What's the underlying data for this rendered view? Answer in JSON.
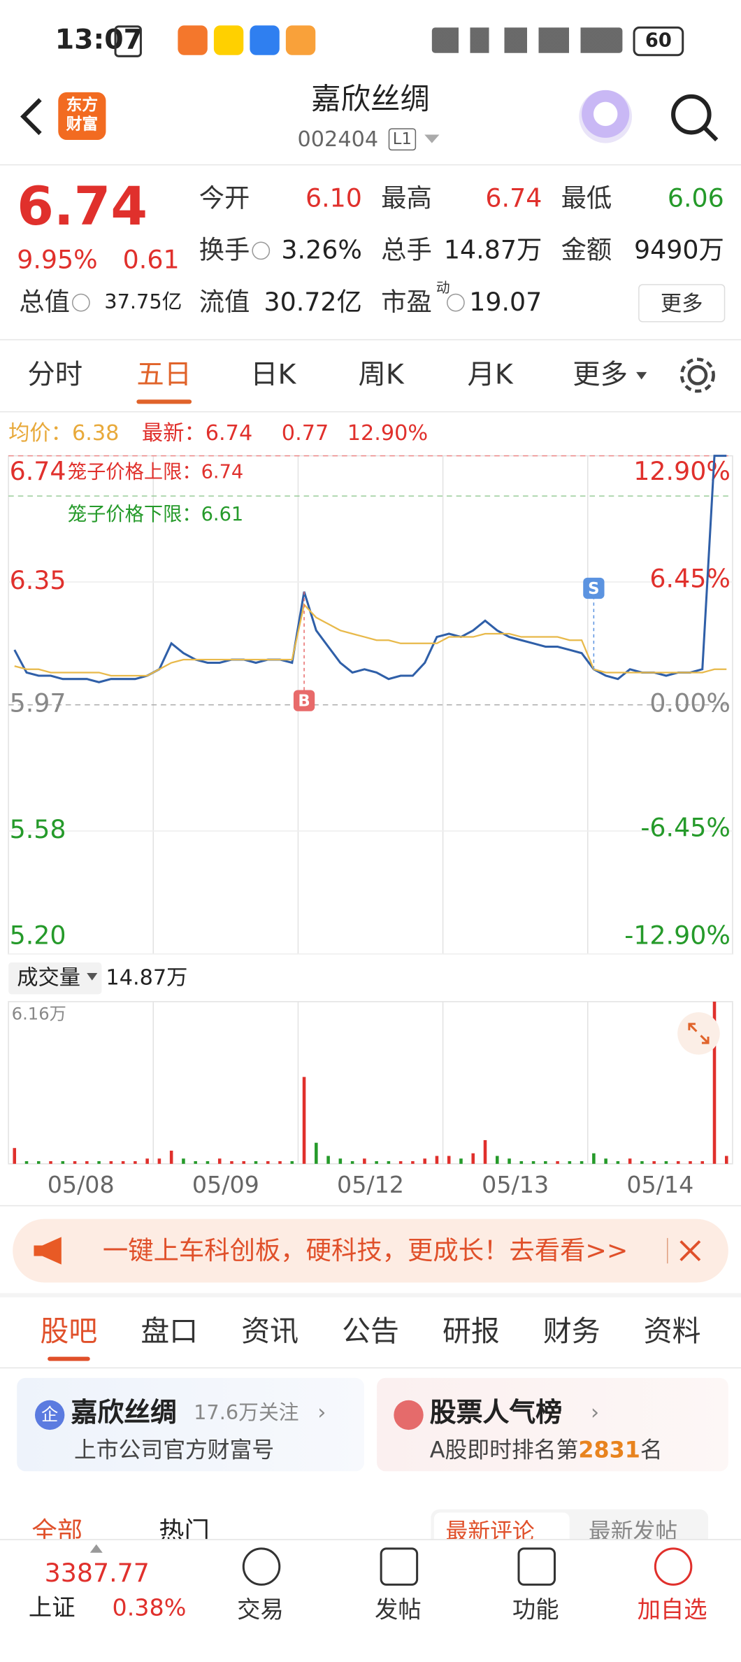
{
  "status_bar": {
    "time": "13:07",
    "battery": "60"
  },
  "header": {
    "logo": [
      "东方",
      "财富"
    ],
    "title": "嘉欣丝绸",
    "code": "002404",
    "level": "L1"
  },
  "quote": {
    "price": "6.74",
    "change_pct": "9.95%",
    "change": "0.61",
    "fields": [
      {
        "label": "今开",
        "value": "6.10"
      },
      {
        "label": "最高",
        "value": "6.74"
      },
      {
        "label": "最低",
        "value": "6.06"
      },
      {
        "label": "换手",
        "value": "3.26%"
      },
      {
        "label": "总手",
        "value": "14.87万"
      },
      {
        "label": "金额",
        "value": "9490万"
      },
      {
        "label": "总值",
        "value": "37.75亿"
      },
      {
        "label": "流值",
        "value": "30.72亿"
      },
      {
        "label": "市盈",
        "sup": "动",
        "value": "19.07"
      }
    ],
    "more": "更多"
  },
  "tabs": [
    "分时",
    "五日",
    "日K",
    "周K",
    "月K",
    "更多"
  ],
  "chart_data": {
    "type": "line",
    "avg_label": "均价：6.38",
    "latest_label": "最新：6.74",
    "change": "0.77",
    "change_pct": "12.90%",
    "cage_upper": "笼子价格上限：6.74",
    "cage_lower": "笼子价格下限：6.61",
    "buy_marker": "B",
    "sell_marker": "S",
    "ylim": [
      5.2,
      6.74
    ],
    "yticks": [
      6.74,
      6.35,
      5.97,
      5.58,
      {
        "value": 5.2,
        "label": "5.20"
      }
    ],
    "y2lim": [
      -12.9,
      12.9
    ],
    "y2ticks": [
      {
        "value": 12.9,
        "label": "12.90%"
      },
      {
        "value": 6.45,
        "label": "6.45%"
      },
      {
        "value": 0,
        "label": "0.00%"
      },
      {
        "value": -6.45,
        "label": "-6.45%"
      },
      {
        "value": -12.9,
        "label": "-12.90%"
      }
    ],
    "series": [
      {
        "name": "price",
        "color": "#2f5fa8"
      },
      {
        "name": "avg",
        "color": "#e8b94a"
      }
    ],
    "days": [
      {
        "date": "05/08",
        "price": [
          6.14,
          6.07,
          6.06,
          6.06,
          6.05,
          6.05,
          6.05,
          6.04,
          6.05,
          6.05,
          6.05,
          6.06
        ],
        "avg": [
          6.09,
          6.08,
          6.08,
          6.07,
          6.07,
          6.07,
          6.07,
          6.07,
          6.06,
          6.06,
          6.06,
          6.06
        ],
        "volume": [
          0.6,
          0.1,
          0.1,
          0.1,
          0.1,
          0.1,
          0.1,
          0.1,
          0.1,
          0.1,
          0.1,
          0.2
        ]
      },
      {
        "date": "05/09",
        "price": [
          6.08,
          6.16,
          6.13,
          6.11,
          6.1,
          6.1,
          6.11,
          6.11,
          6.1,
          6.11,
          6.11,
          6.1
        ],
        "avg": [
          6.08,
          6.1,
          6.11,
          6.11,
          6.11,
          6.11,
          6.11,
          6.11,
          6.11,
          6.11,
          6.11,
          6.11
        ],
        "volume": [
          0.2,
          0.5,
          0.2,
          0.1,
          0.1,
          0.2,
          0.1,
          0.1,
          0.1,
          0.1,
          0.1,
          0.1
        ]
      },
      {
        "date": "05/12",
        "price": [
          6.32,
          6.2,
          6.15,
          6.1,
          6.07,
          6.08,
          6.07,
          6.05,
          6.06,
          6.06,
          6.1,
          6.18
        ],
        "avg": [
          6.28,
          6.24,
          6.22,
          6.2,
          6.19,
          6.18,
          6.17,
          6.17,
          6.16,
          6.16,
          6.16,
          6.16
        ],
        "volume": [
          3.3,
          0.8,
          0.3,
          0.2,
          0.1,
          0.2,
          0.1,
          0.1,
          0.1,
          0.1,
          0.2,
          0.3
        ]
      },
      {
        "date": "05/13",
        "price": [
          6.19,
          6.18,
          6.2,
          6.23,
          6.2,
          6.18,
          6.17,
          6.16,
          6.15,
          6.15,
          6.14,
          6.13
        ],
        "avg": [
          6.18,
          6.18,
          6.18,
          6.19,
          6.19,
          6.19,
          6.18,
          6.18,
          6.18,
          6.18,
          6.17,
          6.17
        ],
        "volume": [
          0.3,
          0.2,
          0.4,
          0.9,
          0.3,
          0.2,
          0.1,
          0.1,
          0.1,
          0.1,
          0.1,
          0.1
        ]
      },
      {
        "date": "05/14",
        "price": [
          6.08,
          6.06,
          6.05,
          6.08,
          6.07,
          6.07,
          6.06,
          6.07,
          6.07,
          6.08,
          6.74,
          6.74
        ],
        "avg": [
          6.08,
          6.07,
          6.07,
          6.07,
          6.07,
          6.07,
          6.07,
          6.07,
          6.07,
          6.07,
          6.08,
          6.08
        ],
        "volume": [
          0.4,
          0.2,
          0.1,
          0.2,
          0.1,
          0.1,
          0.1,
          0.1,
          0.1,
          0.1,
          6.16,
          0.3
        ]
      }
    ],
    "volume_label": "成交量",
    "volume_total": "14.87万",
    "volume_max_label": "6.16万",
    "volume_ylim": [
      0,
      6.16
    ]
  },
  "banner": "一键上车科创板，硬科技，更成长！去看看>>",
  "section_tabs": [
    "股吧",
    "盘口",
    "资讯",
    "公告",
    "研报",
    "财务",
    "资料"
  ],
  "cards": [
    {
      "title": "嘉欣丝绸",
      "meta": "17.6万关注",
      "subtitle": "上市公司官方财富号"
    },
    {
      "title": "股票人气榜",
      "subtitle_pre": "A股即时排名第",
      "rank": "2831",
      "subtitle_post": "名"
    }
  ],
  "sub_tabs": [
    "全部",
    "热门",
    "最新评论",
    "最新发帖"
  ],
  "bottom_nav": {
    "index_value": "3387.77",
    "index_name": "上证",
    "index_change": "0.38%",
    "items": [
      "交易",
      "发帖",
      "功能",
      "加自选"
    ]
  }
}
